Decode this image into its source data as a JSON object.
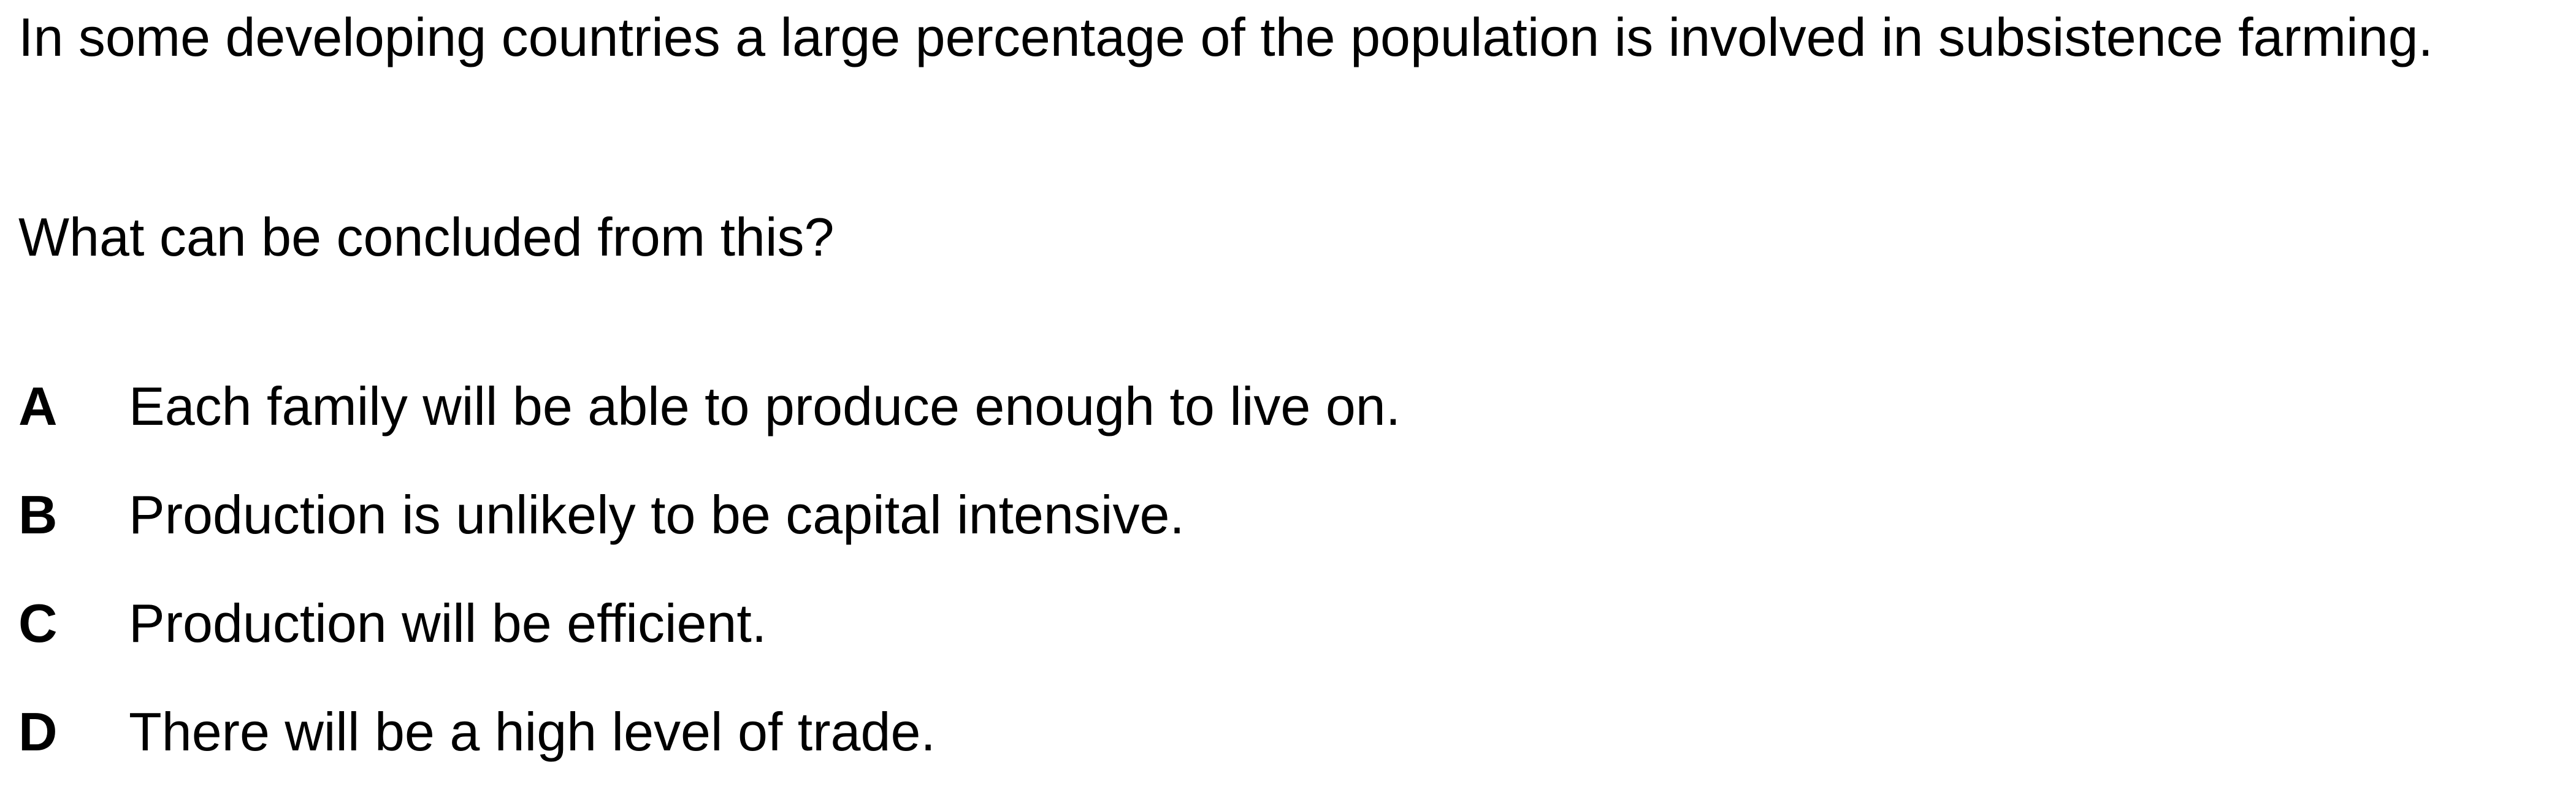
{
  "question": {
    "stem": "In some developing countries a large percentage of the population is involved in subsistence farming.",
    "prompt": "What can be concluded from this?"
  },
  "options": [
    {
      "letter": "A",
      "text": "Each family will be able to produce enough to live on."
    },
    {
      "letter": "B",
      "text": "Production is unlikely to be capital intensive."
    },
    {
      "letter": "C",
      "text": "Production will be efficient."
    },
    {
      "letter": "D",
      "text": "There will be a high level of trade."
    }
  ]
}
